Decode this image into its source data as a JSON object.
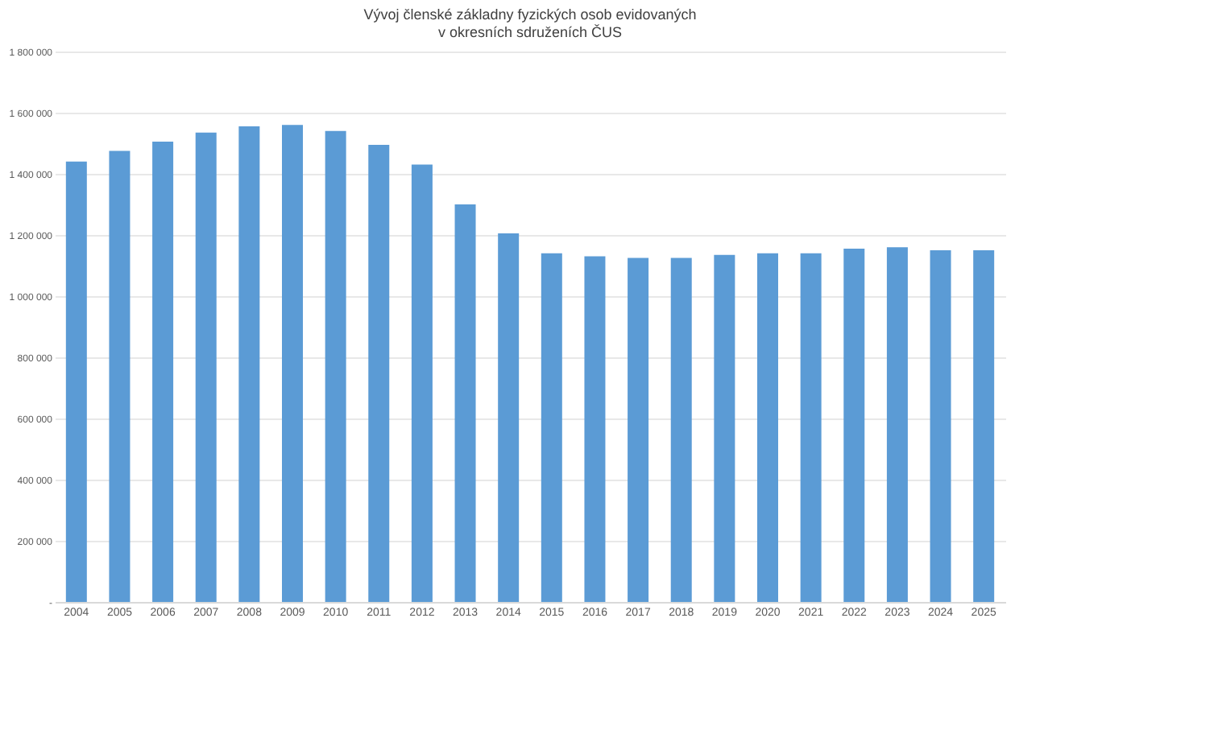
{
  "chart_data": {
    "type": "bar",
    "title": [
      "Vývoj členské základny fyzických osob evidovaných",
      "v okresních sdruženích ČUS"
    ],
    "categories": [
      "2004",
      "2005",
      "2006",
      "2007",
      "2008",
      "2009",
      "2010",
      "2011",
      "2012",
      "2013",
      "2014",
      "2015",
      "2016",
      "2017",
      "2018",
      "2019",
      "2020",
      "2021",
      "2022",
      "2023",
      "2024",
      "2025"
    ],
    "values": [
      1440000,
      1475000,
      1505000,
      1535000,
      1555000,
      1560000,
      1540000,
      1495000,
      1430000,
      1300000,
      1205000,
      1140000,
      1130000,
      1125000,
      1125000,
      1135000,
      1140000,
      1140000,
      1155000,
      1160000,
      1150000,
      1150000
    ],
    "color": "#5b9bd5",
    "ylim": [
      0,
      1800000
    ],
    "yticks": [
      {
        "value": 0,
        "label": "-"
      },
      {
        "value": 200000,
        "label": "200 000"
      },
      {
        "value": 400000,
        "label": "400 000"
      },
      {
        "value": 600000,
        "label": "600 000"
      },
      {
        "value": 800000,
        "label": "800 000"
      },
      {
        "value": 1000000,
        "label": "1 000 000"
      },
      {
        "value": 1200000,
        "label": "1 200 000"
      },
      {
        "value": 1400000,
        "label": "1 400 000"
      },
      {
        "value": 1600000,
        "label": "1 600 000"
      },
      {
        "value": 1800000,
        "label": "1 800 000"
      }
    ],
    "grid": "y"
  }
}
